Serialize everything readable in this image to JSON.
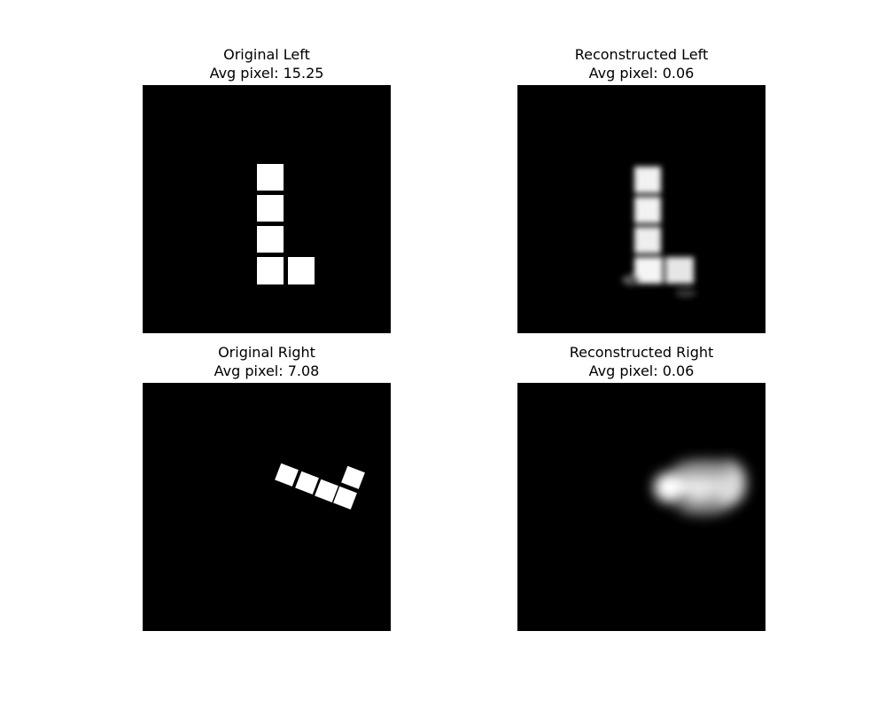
{
  "figure": {
    "background": "#ffffff",
    "panels": [
      {
        "id": "original-left",
        "title": "Original Left",
        "subtitle": "Avg pixel: 15.25",
        "content": "sharp L-shaped figure of 5 white squares on black"
      },
      {
        "id": "reconstructed-left",
        "title": "Reconstructed Left",
        "subtitle": "Avg pixel: 0.06",
        "content": "blurry L-shaped figure of 5 squares on black"
      },
      {
        "id": "original-right",
        "title": "Original Right",
        "subtitle": "Avg pixel: 7.08",
        "content": "sharp tilted L-shaped figure of 5 white squares on black"
      },
      {
        "id": "reconstructed-right",
        "title": "Reconstructed Right",
        "subtitle": "Avg pixel: 0.06",
        "content": "blurry horizontal blob on black"
      }
    ],
    "colors": {
      "image_background": "#000000",
      "shape": "#ffffff"
    }
  }
}
